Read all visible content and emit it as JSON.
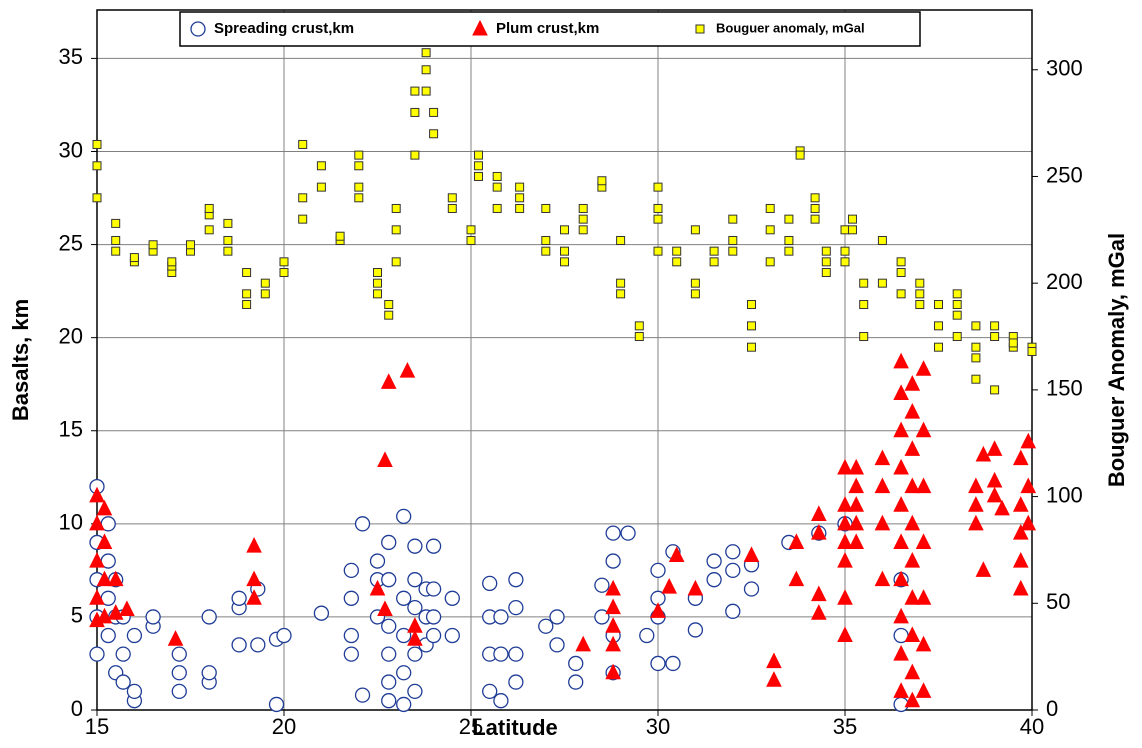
{
  "chart_data": {
    "type": "scatter",
    "x_label": "Latitude",
    "y_label": "Basalts, km",
    "y2_label": "Bouguer Anomaly, mGal",
    "xlim": [
      15,
      40
    ],
    "xticks": [
      15,
      20,
      25,
      30,
      35,
      40
    ],
    "ylim": [
      0,
      37.6
    ],
    "yticks": [
      0,
      5,
      10,
      15,
      20,
      25,
      30,
      35
    ],
    "y2lim": [
      0,
      328
    ],
    "y2ticks": [
      0,
      50,
      100,
      150,
      200,
      250,
      300
    ],
    "grid": true,
    "legend": "top",
    "series": [
      {
        "name": "Spreading crust,km",
        "marker": "circle",
        "color": "#1f3c96",
        "axis": "y",
        "x": [
          15,
          15,
          15,
          15,
          15,
          15.3,
          15.3,
          15.3,
          15.3,
          15.5,
          15.5,
          15.5,
          15.7,
          15.7,
          15.7,
          16,
          16,
          16,
          16.5,
          16.5,
          17.2,
          17.2,
          17.2,
          18,
          18,
          18,
          18.8,
          18.8,
          18.8,
          19.3,
          19.3,
          19.8,
          19.8,
          20,
          21,
          21.8,
          21.8,
          21.8,
          21.8,
          22.1,
          22.1,
          22.5,
          22.5,
          22.5,
          22.8,
          22.8,
          22.8,
          22.8,
          22.8,
          22.8,
          23.2,
          23.2,
          23.2,
          23.2,
          23.2,
          23.5,
          23.5,
          23.5,
          23.5,
          23.5,
          23.8,
          23.8,
          23.8,
          24,
          24,
          24,
          24,
          24.5,
          24.5,
          25.5,
          25.5,
          25.5,
          25.5,
          25.8,
          25.8,
          25.8,
          26.2,
          26.2,
          26.2,
          26.2,
          27,
          27.3,
          27.3,
          27.8,
          27.8,
          28.5,
          28.5,
          28.8,
          28.8,
          28.8,
          28.8,
          29.2,
          29.7,
          30,
          30,
          30,
          30,
          30.4,
          30.4,
          31,
          31,
          31.5,
          31.5,
          32,
          32,
          32,
          32.5,
          32.5,
          33.5,
          34.3,
          35,
          36.5,
          36.5,
          36.5
        ],
        "values": [
          3,
          5,
          7,
          9,
          12,
          4,
          6,
          8,
          10,
          2,
          5,
          7,
          1.5,
          3,
          5,
          0.5,
          1,
          4,
          4.5,
          5,
          1,
          2,
          3,
          1.5,
          2,
          5,
          3.5,
          5.5,
          6,
          3.5,
          6.5,
          0.3,
          3.8,
          4,
          5.2,
          3,
          4,
          6,
          7.5,
          0.8,
          10,
          5,
          7,
          8,
          0.5,
          1.5,
          3,
          4.5,
          7,
          9,
          0.3,
          2,
          4,
          6,
          10.4,
          1,
          3,
          5.5,
          7,
          8.8,
          3.5,
          5,
          6.5,
          4,
          5,
          6.5,
          8.8,
          4,
          6,
          1,
          3,
          5,
          6.8,
          0.5,
          3,
          5,
          1.5,
          3,
          5.5,
          7,
          4.5,
          3.5,
          5,
          1.5,
          2.5,
          5,
          6.7,
          2,
          4,
          8,
          9.5,
          9.5,
          4,
          2.5,
          5,
          6,
          7.5,
          2.5,
          8.5,
          4.3,
          6,
          7,
          8,
          5.3,
          7.5,
          8.5,
          6.5,
          7.8,
          9,
          9.5,
          10,
          0.3,
          4,
          7
        ]
      },
      {
        "name": "Plum crust,km",
        "marker": "triangle",
        "color": "#ff0000",
        "axis": "y",
        "x": [
          15,
          15,
          15,
          15,
          15,
          15.2,
          15.2,
          15.2,
          15.2,
          15.5,
          15.5,
          15.8,
          17.1,
          19.2,
          19.2,
          19.2,
          22.5,
          22.7,
          22.7,
          22.8,
          23.3,
          23.5,
          23.5,
          28,
          28.8,
          28.8,
          28.8,
          28.8,
          28.8,
          30,
          30.3,
          30.5,
          31,
          32.5,
          33.1,
          33.1,
          33.7,
          33.7,
          34.3,
          34.3,
          34.3,
          34.3,
          35,
          35,
          35,
          35,
          35,
          35,
          35,
          35.3,
          35.3,
          35.3,
          35.3,
          35.3,
          36,
          36,
          36,
          36,
          36.5,
          36.5,
          36.5,
          36.5,
          36.5,
          36.5,
          36.5,
          36.5,
          36.5,
          36.5,
          36.8,
          36.8,
          36.8,
          36.8,
          36.8,
          36.8,
          36.8,
          36.8,
          36.8,
          36.8,
          37.1,
          37.1,
          37.1,
          37.1,
          37.1,
          37.1,
          37.1,
          38.5,
          38.5,
          38.5,
          38.7,
          38.7,
          39,
          39,
          39,
          39.2,
          39.7,
          39.7,
          39.7,
          39.7,
          39.7,
          39.9,
          39.9,
          39.9
        ],
        "values": [
          4.8,
          6,
          8,
          10,
          11.5,
          5,
          7,
          9,
          10.8,
          5.2,
          7,
          5.4,
          3.8,
          6,
          7,
          8.8,
          6.5,
          5.4,
          13.4,
          17.6,
          18.2,
          3.8,
          4.5,
          3.5,
          2,
          3.5,
          4.5,
          5.5,
          6.5,
          5.3,
          6.6,
          8.3,
          6.5,
          8.3,
          2.6,
          1.6,
          9,
          7,
          5.2,
          6.2,
          9.5,
          10.5,
          4,
          6,
          8,
          9,
          10,
          11,
          13,
          9,
          10,
          11,
          12,
          13,
          7,
          10,
          12,
          13.5,
          1,
          3,
          5,
          7,
          9,
          11,
          13,
          15,
          17,
          18.7,
          0.5,
          2,
          4,
          6,
          8,
          10,
          12,
          14,
          16,
          17.5,
          1,
          3.5,
          6,
          9,
          12,
          15,
          18.3,
          10,
          11,
          12,
          7.5,
          13.7,
          11.5,
          12.3,
          14,
          10.8,
          6.5,
          8,
          9.5,
          11,
          13.5,
          10,
          12,
          14.4
        ]
      },
      {
        "name": "Bouguer anomaly, mGal",
        "marker": "square",
        "color": "#ffff00",
        "axis": "y2",
        "x": [
          15,
          15,
          15,
          15.5,
          15.5,
          15.5,
          16,
          16,
          16.5,
          16.5,
          17,
          17,
          17,
          17.5,
          17.5,
          18,
          18,
          18,
          18.5,
          18.5,
          18.5,
          19,
          19,
          19,
          19.5,
          19.5,
          20,
          20,
          20.5,
          20.5,
          20.5,
          21,
          21,
          21.5,
          21.5,
          22,
          22,
          22,
          22,
          22.5,
          22.5,
          22.5,
          22.8,
          22.8,
          23,
          23,
          23,
          23.5,
          23.5,
          23.5,
          23.8,
          23.8,
          23.8,
          24,
          24,
          24.5,
          24.5,
          25,
          25,
          25.2,
          25.2,
          25.2,
          25.7,
          25.7,
          25.7,
          26.3,
          26.3,
          26.3,
          27,
          27,
          27,
          27.5,
          27.5,
          27.5,
          28,
          28,
          28,
          28.5,
          28.5,
          29,
          29,
          29,
          29.5,
          29.5,
          30,
          30,
          30,
          30,
          30.5,
          30.5,
          31,
          31,
          31,
          31.5,
          31.5,
          32,
          32,
          32,
          32.5,
          32.5,
          32.5,
          33,
          33,
          33,
          33.5,
          33.5,
          33.5,
          33.8,
          33.8,
          34.2,
          34.2,
          34.2,
          34.5,
          34.5,
          34.5,
          35,
          35,
          35,
          35.2,
          35.2,
          35.5,
          35.5,
          35.5,
          36,
          36,
          36.5,
          36.5,
          36.5,
          37,
          37,
          37,
          37.5,
          37.5,
          37.5,
          38,
          38,
          38,
          38,
          38.5,
          38.5,
          38.5,
          38.5,
          39,
          39,
          39,
          39.5,
          39.5,
          39.5,
          40,
          40
        ],
        "values": [
          240,
          255,
          265,
          215,
          220,
          228,
          210,
          212,
          215,
          218,
          205,
          208,
          210,
          215,
          218,
          225,
          232,
          235,
          215,
          220,
          228,
          190,
          195,
          205,
          195,
          200,
          205,
          210,
          230,
          240,
          265,
          245,
          255,
          220,
          222,
          240,
          245,
          255,
          260,
          205,
          195,
          200,
          185,
          190,
          210,
          225,
          235,
          260,
          280,
          290,
          300,
          308,
          290,
          280,
          270,
          235,
          240,
          220,
          225,
          250,
          255,
          260,
          245,
          250,
          235,
          240,
          245,
          235,
          235,
          220,
          215,
          210,
          215,
          225,
          230,
          235,
          225,
          245,
          248,
          220,
          200,
          195,
          175,
          180,
          215,
          230,
          245,
          235,
          215,
          210,
          200,
          195,
          225,
          215,
          210,
          220,
          215,
          230,
          180,
          170,
          190,
          210,
          225,
          235,
          230,
          220,
          215,
          262,
          260,
          240,
          230,
          235,
          215,
          210,
          205,
          225,
          215,
          210,
          230,
          225,
          175,
          190,
          200,
          220,
          200,
          210,
          205,
          195,
          190,
          195,
          200,
          170,
          180,
          190,
          175,
          185,
          195,
          190,
          155,
          165,
          170,
          180,
          150,
          175,
          180,
          170,
          175,
          172,
          170,
          168
        ]
      }
    ]
  }
}
